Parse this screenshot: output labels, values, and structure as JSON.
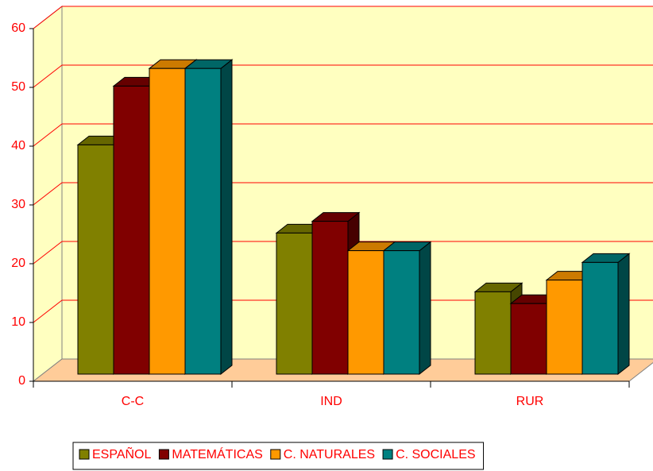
{
  "chart_data": {
    "type": "bar3d",
    "categories": [
      "C-C",
      "IND",
      "RUR"
    ],
    "series": [
      {
        "name": "ESPAÑOL",
        "color": "#808000",
        "values": [
          39,
          24,
          14
        ]
      },
      {
        "name": "MATEMÁTICAS",
        "color": "#800000",
        "values": [
          49,
          26,
          12
        ]
      },
      {
        "name": "C. NATURALES",
        "color": "#ff9900",
        "values": [
          52,
          21,
          16
        ]
      },
      {
        "name": "C. SOCIALES",
        "color": "#008080",
        "values": [
          52,
          21,
          19
        ]
      }
    ],
    "ylim": [
      0,
      60
    ],
    "yticks": [
      0,
      10,
      20,
      30,
      40,
      50,
      60
    ],
    "grid": true,
    "legend": "bottom"
  }
}
